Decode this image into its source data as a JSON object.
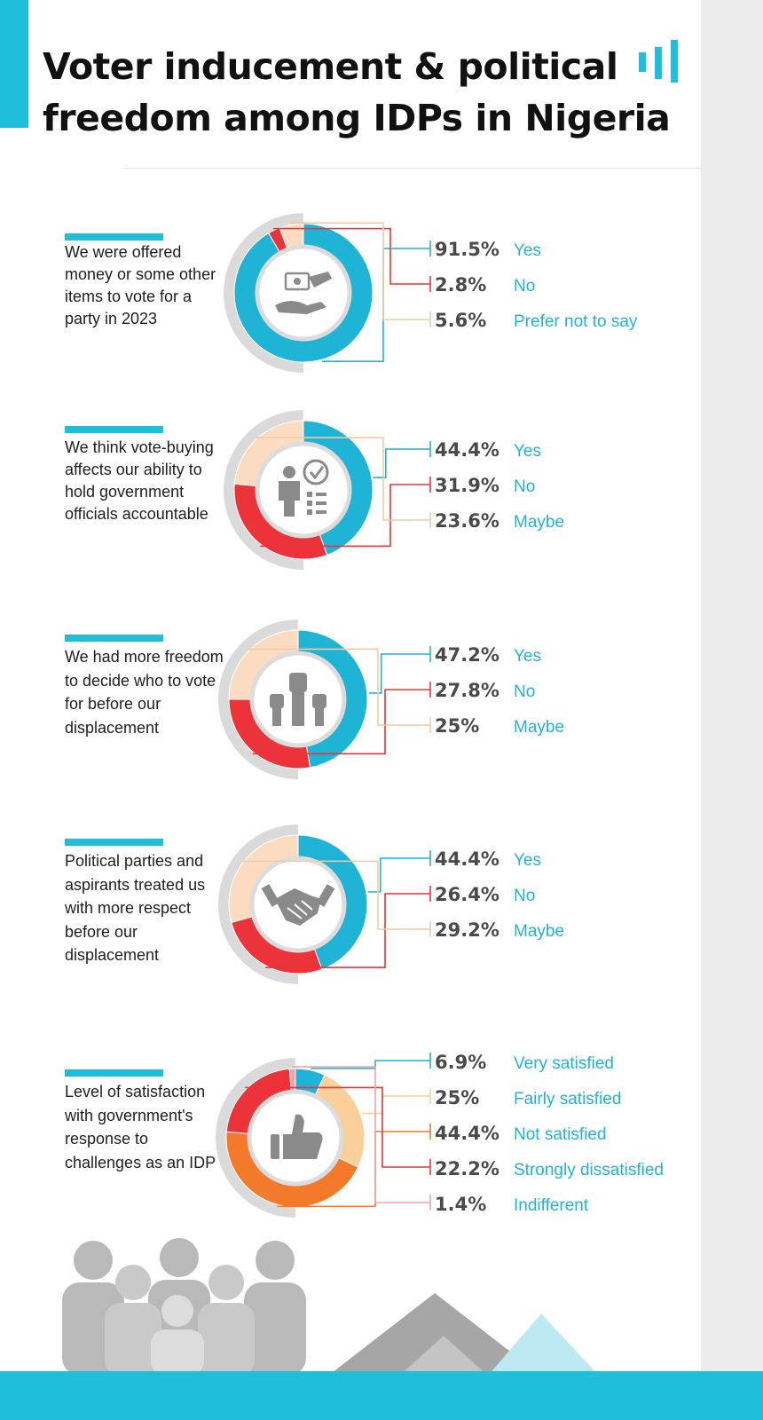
{
  "title": {
    "line1": "Voter inducement & political",
    "line2": "freedom among IDPs in Nigeria"
  },
  "colors": {
    "blue": "#1fb3d6",
    "red": "#ec3339",
    "peach": "#fbdcc1",
    "orange": "#f27a2a",
    "pink": "#f5a3a3",
    "gray": "#dadada"
  },
  "chart_data": [
    {
      "type": "pie",
      "icon": "money-handover-icon",
      "question": "We were offered money or some other items to vote for a party in 2023",
      "categories": [
        "Yes",
        "No",
        "Prefer not to say"
      ],
      "values": [
        91.5,
        2.8,
        5.6
      ],
      "labels": [
        "91.5%",
        "2.8%",
        "5.6%"
      ],
      "colors": [
        "#1fb3d6",
        "#ec3339",
        "#fbdcc1"
      ]
    },
    {
      "type": "pie",
      "icon": "checklist-person-icon",
      "question": "We think vote-buying affects our ability to hold government officials accountable",
      "categories": [
        "Yes",
        "No",
        "Maybe"
      ],
      "values": [
        44.4,
        31.9,
        23.6
      ],
      "labels": [
        "44.4%",
        "31.9%",
        "23.6%"
      ],
      "colors": [
        "#1fb3d6",
        "#ec3339",
        "#fbdcc1"
      ]
    },
    {
      "type": "pie",
      "icon": "raised-fists-icon",
      "question": "We had more freedom to decide who to vote for before our displacement",
      "categories": [
        "Yes",
        "No",
        "Maybe"
      ],
      "values": [
        47.2,
        27.8,
        25
      ],
      "labels": [
        "47.2%",
        "27.8%",
        "25%"
      ],
      "colors": [
        "#1fb3d6",
        "#ec3339",
        "#fbdcc1"
      ]
    },
    {
      "type": "pie",
      "icon": "handshake-icon",
      "question": "Political parties and aspirants treated us with more respect before our displacement",
      "categories": [
        "Yes",
        "No",
        "Maybe"
      ],
      "values": [
        44.4,
        26.4,
        29.2
      ],
      "labels": [
        "44.4%",
        "26.4%",
        "29.2%"
      ],
      "colors": [
        "#1fb3d6",
        "#ec3339",
        "#fbdcc1"
      ]
    },
    {
      "type": "pie",
      "icon": "thumbs-up-icon",
      "question": "Level of satisfaction with government's response to challenges as an IDP",
      "categories": [
        "Very satisfied",
        "Fairly satisfied",
        "Not satisfied",
        "Strongly dissatisfied",
        "Indifferent"
      ],
      "values": [
        6.9,
        25,
        44.4,
        22.2,
        1.4
      ],
      "labels": [
        "6.9%",
        "25%",
        "44.4%",
        "22.2%",
        "1.4%"
      ],
      "colors": [
        "#1fb3d6",
        "#fbcf99",
        "#f27a2a",
        "#ec3339",
        "#f5a3a3"
      ]
    }
  ]
}
